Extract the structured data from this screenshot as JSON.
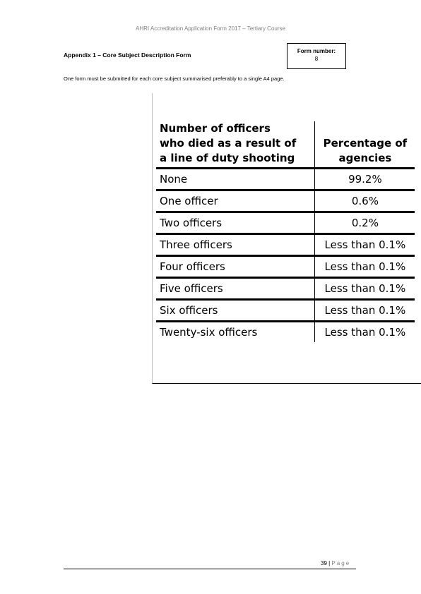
{
  "header": {
    "running_title": "AHRI Accreditation Application Form 2017 – Tertiary Course"
  },
  "appendix": {
    "title": "Appendix 1 – Core Subject Description Form",
    "form_number_label": "Form number:",
    "form_number_value": "8",
    "instruction": "One form must be submitted for each core subject summarised preferably to a single A4 page."
  },
  "table": {
    "headers": [
      {
        "line1": "Number of officers",
        "line2": "who died as a result of",
        "line3": "a line of duty shooting"
      },
      {
        "line1": "Percentage of",
        "line2": "agencies"
      }
    ],
    "rows": [
      {
        "officers": "None",
        "percentage": "99.2%"
      },
      {
        "officers": "One officer",
        "percentage": "0.6%"
      },
      {
        "officers": "Two officers",
        "percentage": "0.2%"
      },
      {
        "officers": "Three officers",
        "percentage": "Less than 0.1%"
      },
      {
        "officers": "Four officers",
        "percentage": "Less than 0.1%"
      },
      {
        "officers": "Five officers",
        "percentage": "Less than 0.1%"
      },
      {
        "officers": "Six officers",
        "percentage": "Less than 0.1%"
      },
      {
        "officers": "Twenty-six officers",
        "percentage": "Less than 0.1%"
      }
    ]
  },
  "footer": {
    "page_number": "39",
    "separator": "|",
    "page_label": "Page"
  }
}
